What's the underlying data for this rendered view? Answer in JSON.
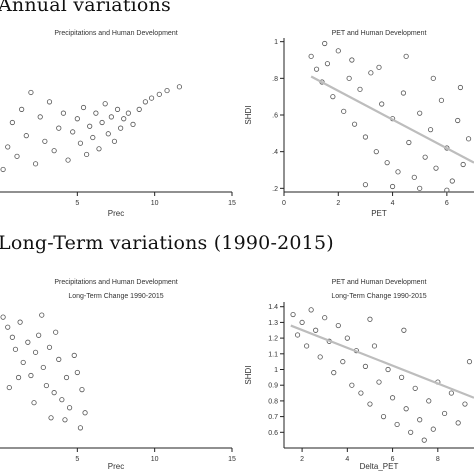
{
  "sections": [
    {
      "title": "Annual variations"
    },
    {
      "title": "Long-Term variations (1990-2015)"
    }
  ],
  "chart_data": [
    {
      "id": "p1",
      "type": "scatter",
      "title": "Precipitations and Human Development",
      "subtitle": "",
      "xlabel": "Prec",
      "ylabel": "",
      "xlim": [
        0,
        15
      ],
      "ylim": [
        0.18,
        1.0
      ],
      "xticks": [
        5,
        10,
        15
      ],
      "yticks": [],
      "fit_line": null,
      "series": [
        {
          "color": "#555555",
          "points": [
            [
              0.2,
              0.3
            ],
            [
              0.5,
              0.42
            ],
            [
              0.8,
              0.55
            ],
            [
              1.1,
              0.37
            ],
            [
              1.4,
              0.62
            ],
            [
              1.7,
              0.48
            ],
            [
              2.0,
              0.71
            ],
            [
              2.3,
              0.33
            ],
            [
              2.6,
              0.58
            ],
            [
              2.9,
              0.45
            ],
            [
              3.2,
              0.66
            ],
            [
              3.5,
              0.4
            ],
            [
              3.8,
              0.52
            ],
            [
              4.1,
              0.6
            ],
            [
              4.4,
              0.35
            ],
            [
              4.7,
              0.5
            ],
            [
              5.0,
              0.57
            ],
            [
              5.2,
              0.44
            ],
            [
              5.4,
              0.63
            ],
            [
              5.6,
              0.38
            ],
            [
              5.8,
              0.53
            ],
            [
              6.0,
              0.47
            ],
            [
              6.2,
              0.6
            ],
            [
              6.4,
              0.41
            ],
            [
              6.6,
              0.55
            ],
            [
              6.8,
              0.65
            ],
            [
              7.0,
              0.49
            ],
            [
              7.2,
              0.58
            ],
            [
              7.4,
              0.45
            ],
            [
              7.6,
              0.62
            ],
            [
              7.8,
              0.52
            ],
            [
              8.0,
              0.57
            ],
            [
              8.3,
              0.6
            ],
            [
              8.6,
              0.54
            ],
            [
              9.0,
              0.62
            ],
            [
              9.4,
              0.66
            ],
            [
              9.8,
              0.68
            ],
            [
              10.3,
              0.7
            ],
            [
              10.8,
              0.72
            ],
            [
              11.6,
              0.74
            ]
          ]
        }
      ]
    },
    {
      "id": "p2",
      "type": "scatter",
      "title": "PET and Human Development",
      "subtitle": "",
      "xlabel": "PET",
      "ylabel": "SHDI",
      "xlim": [
        0,
        7
      ],
      "ylim": [
        0.18,
        1.02
      ],
      "xticks": [
        0,
        2,
        4,
        6
      ],
      "yticks": [
        0.2,
        0.4,
        0.6,
        0.8,
        1
      ],
      "fit_line": {
        "x": [
          1,
          7
        ],
        "y": [
          0.81,
          0.34
        ]
      },
      "series": [
        {
          "color": "#555555",
          "points": [
            [
              1.0,
              0.92
            ],
            [
              1.2,
              0.85
            ],
            [
              1.4,
              0.78
            ],
            [
              1.6,
              0.88
            ],
            [
              1.8,
              0.7
            ],
            [
              2.0,
              0.95
            ],
            [
              2.2,
              0.62
            ],
            [
              2.4,
              0.8
            ],
            [
              2.6,
              0.55
            ],
            [
              2.8,
              0.74
            ],
            [
              3.0,
              0.48
            ],
            [
              3.2,
              0.83
            ],
            [
              3.4,
              0.4
            ],
            [
              3.6,
              0.66
            ],
            [
              3.8,
              0.34
            ],
            [
              4.0,
              0.58
            ],
            [
              4.2,
              0.29
            ],
            [
              4.4,
              0.72
            ],
            [
              4.6,
              0.45
            ],
            [
              4.8,
              0.26
            ],
            [
              5.0,
              0.61
            ],
            [
              5.2,
              0.37
            ],
            [
              5.4,
              0.52
            ],
            [
              5.6,
              0.31
            ],
            [
              5.8,
              0.68
            ],
            [
              6.0,
              0.42
            ],
            [
              6.2,
              0.24
            ],
            [
              6.4,
              0.57
            ],
            [
              6.6,
              0.33
            ],
            [
              6.8,
              0.47
            ],
            [
              1.5,
              0.99
            ],
            [
              2.5,
              0.9
            ],
            [
              3.5,
              0.86
            ],
            [
              4.5,
              0.92
            ],
            [
              5.5,
              0.8
            ],
            [
              6.5,
              0.75
            ],
            [
              3.0,
              0.22
            ],
            [
              4.0,
              0.21
            ],
            [
              5.0,
              0.2
            ],
            [
              6.0,
              0.19
            ]
          ]
        }
      ]
    },
    {
      "id": "p3",
      "type": "scatter",
      "title": "Precipitations and Human Development",
      "subtitle": "Long-Term Change 1990-2015",
      "xlabel": "Prec",
      "ylabel": "",
      "xlim": [
        0,
        15
      ],
      "ylim": [
        0,
        1.45
      ],
      "xticks": [
        5,
        10,
        15
      ],
      "yticks": [],
      "fit_line": null,
      "series": [
        {
          "color": "#555555",
          "points": [
            [
              0.2,
              1.3
            ],
            [
              0.5,
              1.2
            ],
            [
              0.8,
              1.1
            ],
            [
              1.0,
              0.98
            ],
            [
              1.3,
              1.25
            ],
            [
              1.5,
              0.85
            ],
            [
              1.8,
              1.05
            ],
            [
              2.0,
              0.72
            ],
            [
              2.3,
              0.95
            ],
            [
              2.5,
              1.12
            ],
            [
              2.8,
              0.8
            ],
            [
              3.0,
              0.62
            ],
            [
              3.2,
              1.0
            ],
            [
              3.5,
              0.55
            ],
            [
              3.8,
              0.88
            ],
            [
              4.0,
              0.48
            ],
            [
              4.3,
              0.7
            ],
            [
              4.5,
              0.4
            ],
            [
              5.0,
              0.75
            ],
            [
              5.3,
              0.58
            ],
            [
              5.5,
              0.35
            ],
            [
              4.8,
              0.92
            ],
            [
              3.6,
              1.15
            ],
            [
              2.7,
              1.32
            ],
            [
              1.2,
              0.7
            ],
            [
              0.6,
              0.6
            ],
            [
              5.2,
              0.2
            ],
            [
              4.2,
              0.28
            ],
            [
              3.3,
              0.3
            ],
            [
              2.2,
              0.45
            ]
          ]
        }
      ]
    },
    {
      "id": "p4",
      "type": "scatter",
      "title": "PET and Human Development",
      "subtitle": "Long-Term Change 1990-2015",
      "xlabel": "Delta_PET",
      "ylabel": "SHDI",
      "xlim": [
        1.2,
        9.6
      ],
      "ylim": [
        0.5,
        1.43
      ],
      "xticks": [
        2,
        4,
        6,
        8
      ],
      "yticks": [
        0.6,
        0.7,
        0.8,
        0.9,
        1,
        1.1,
        1.2,
        1.3,
        1.4
      ],
      "fit_line": {
        "x": [
          1.5,
          9.6
        ],
        "y": [
          1.28,
          0.82
        ]
      },
      "series": [
        {
          "color": "#555555",
          "points": [
            [
              1.6,
              1.35
            ],
            [
              1.8,
              1.22
            ],
            [
              2.0,
              1.3
            ],
            [
              2.2,
              1.15
            ],
            [
              2.4,
              1.38
            ],
            [
              2.6,
              1.25
            ],
            [
              2.8,
              1.08
            ],
            [
              3.0,
              1.33
            ],
            [
              3.2,
              1.18
            ],
            [
              3.4,
              0.98
            ],
            [
              3.6,
              1.28
            ],
            [
              3.8,
              1.05
            ],
            [
              4.0,
              1.2
            ],
            [
              4.2,
              0.9
            ],
            [
              4.4,
              1.12
            ],
            [
              4.6,
              0.85
            ],
            [
              4.8,
              1.02
            ],
            [
              5.0,
              0.78
            ],
            [
              5.2,
              1.15
            ],
            [
              5.4,
              0.92
            ],
            [
              5.6,
              0.7
            ],
            [
              5.8,
              1.0
            ],
            [
              6.0,
              0.82
            ],
            [
              6.2,
              0.65
            ],
            [
              6.4,
              0.95
            ],
            [
              6.6,
              0.75
            ],
            [
              6.8,
              0.6
            ],
            [
              7.0,
              0.88
            ],
            [
              7.2,
              0.68
            ],
            [
              7.4,
              0.55
            ],
            [
              7.6,
              0.8
            ],
            [
              7.8,
              0.62
            ],
            [
              8.0,
              0.92
            ],
            [
              8.3,
              0.72
            ],
            [
              8.6,
              0.85
            ],
            [
              8.9,
              0.66
            ],
            [
              9.2,
              0.78
            ],
            [
              9.4,
              1.05
            ],
            [
              5.0,
              1.32
            ],
            [
              6.5,
              1.25
            ]
          ]
        }
      ]
    }
  ]
}
